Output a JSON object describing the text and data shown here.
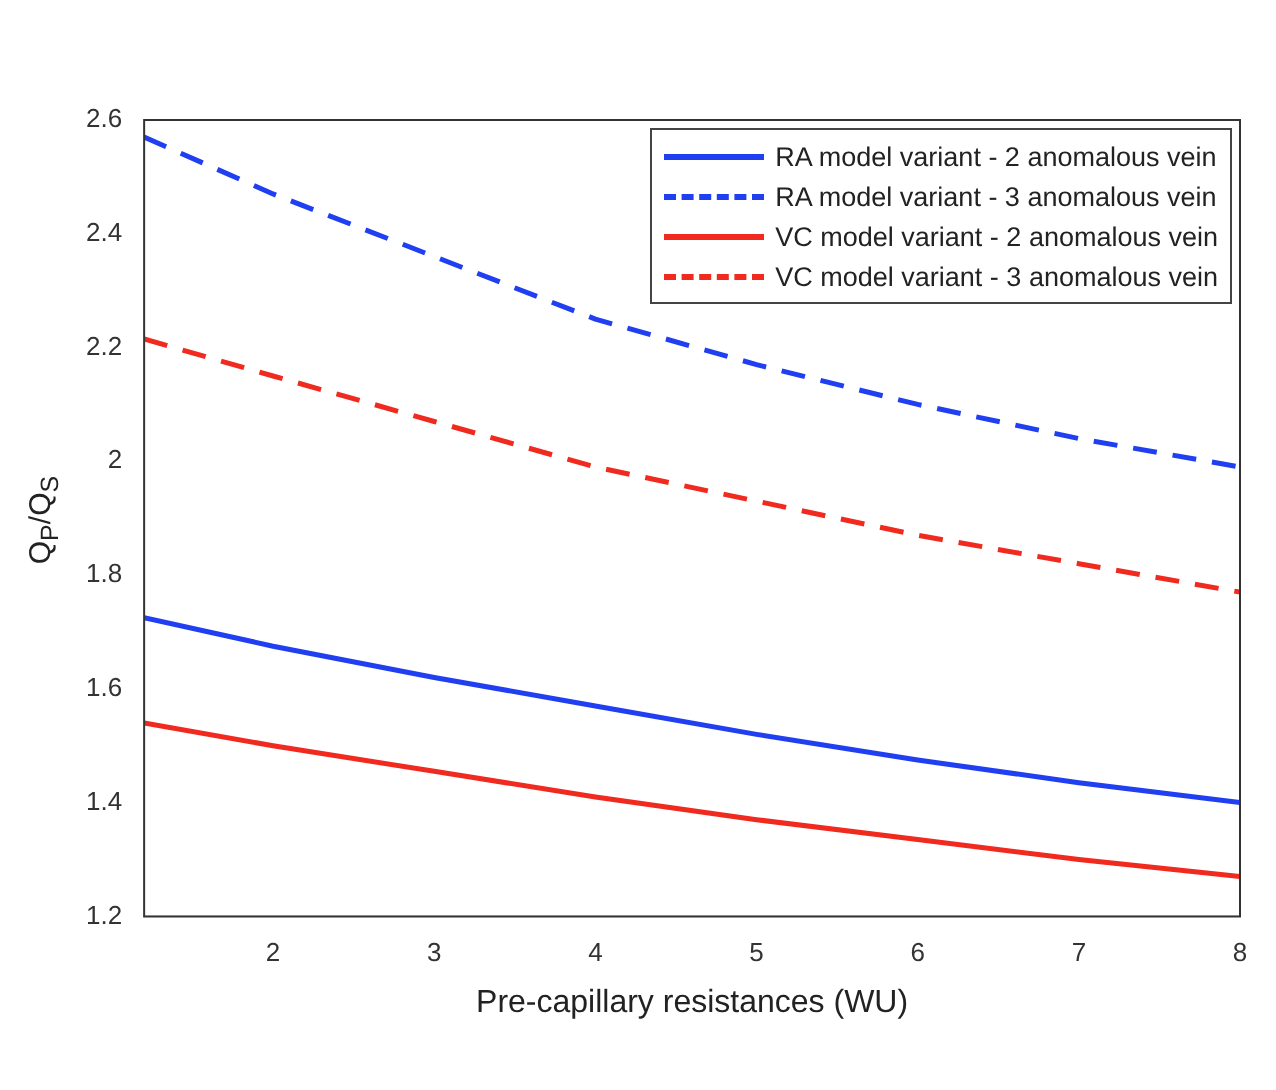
{
  "chart_data": {
    "type": "line",
    "xlabel": "Pre-capillary resistances (WU)",
    "ylabel": "Q$_{P}$/Q$_{S}$",
    "x": [
      1.2,
      2,
      3,
      4,
      5,
      6,
      7,
      8
    ],
    "xlim": [
      1.2,
      8
    ],
    "xticks": [
      2,
      3,
      4,
      5,
      6,
      7,
      8
    ],
    "ylim": [
      1.2,
      2.6
    ],
    "yticks": [
      1.2,
      1.4,
      1.6,
      1.8,
      2,
      2.2,
      2.4,
      2.6
    ],
    "grid": false,
    "legend": "top right",
    "marker": "none",
    "series": [
      {
        "name": "RA model variant - 2 anomalous vein",
        "color": "#1f3ff0",
        "line_style": "solid",
        "values": [
          1.725,
          1.675,
          1.62,
          1.57,
          1.52,
          1.475,
          1.435,
          1.4
        ]
      },
      {
        "name": "RA model variant - 3 anomalous vein",
        "color": "#1f3ff0",
        "line_style": "dashed",
        "values": [
          2.57,
          2.47,
          2.36,
          2.25,
          2.17,
          2.1,
          2.04,
          1.99
        ]
      },
      {
        "name": "VC model variant - 2 anomalous vein",
        "color": "#f02a1f",
        "line_style": "solid",
        "values": [
          1.54,
          1.5,
          1.455,
          1.41,
          1.37,
          1.335,
          1.3,
          1.27
        ]
      },
      {
        "name": "VC model variant - 3 anomalous vein",
        "color": "#f02a1f",
        "line_style": "dashed",
        "values": [
          2.215,
          2.15,
          2.07,
          1.99,
          1.93,
          1.87,
          1.82,
          1.77
        ]
      }
    ]
  }
}
